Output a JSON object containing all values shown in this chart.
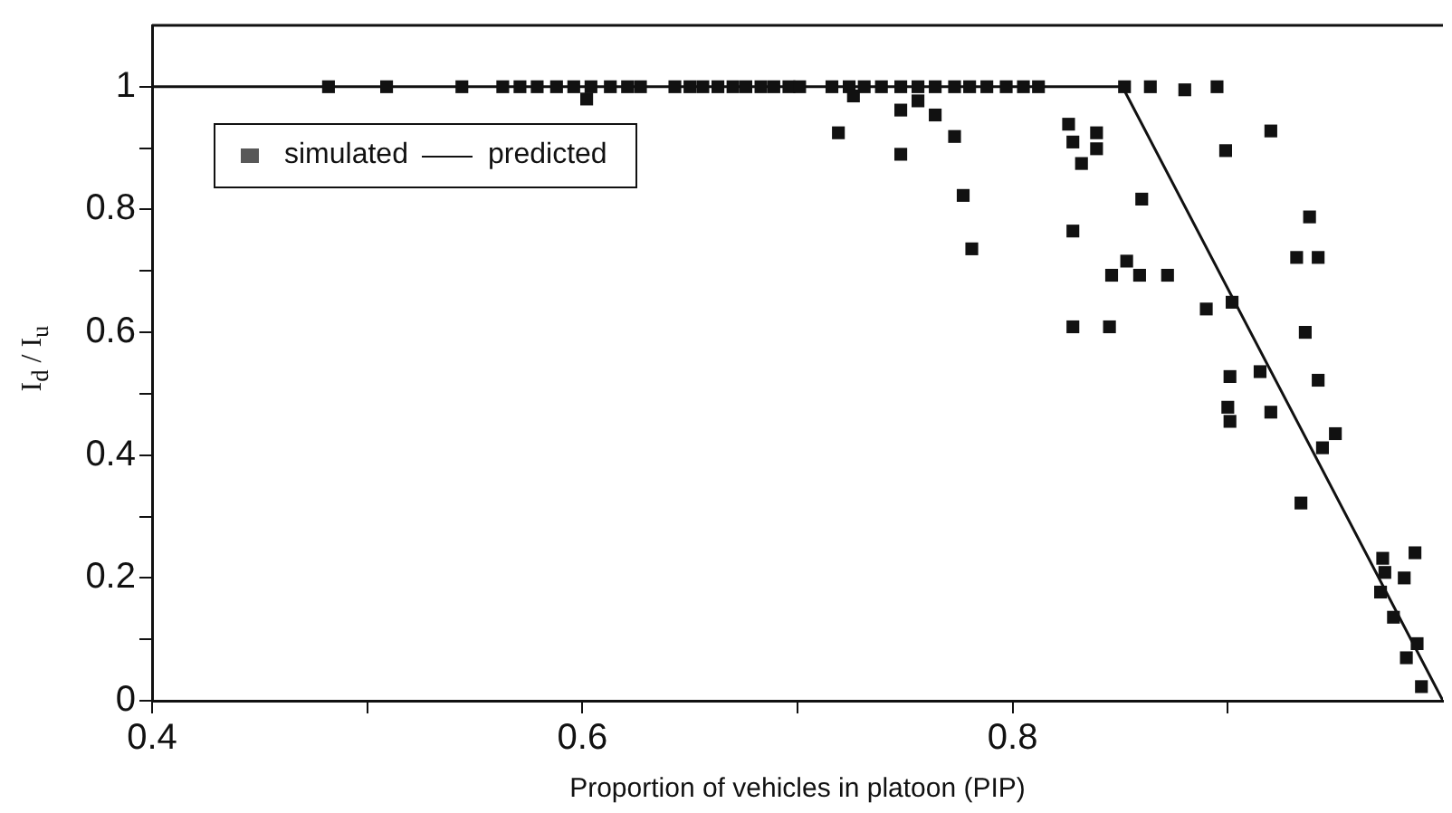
{
  "chart_data": {
    "type": "scatter",
    "xlabel": "Proportion of vehicles in platoon (PIP)",
    "ylabel": "I$_{d}$ / I$_{u}$",
    "xlim": [
      0.4,
      1.0
    ],
    "xticks": [
      0.4,
      {
        "value": 0.5,
        "label": null
      },
      0.6,
      {
        "value": 0.7,
        "label": null
      },
      0.8,
      {
        "value": 0.9,
        "label": null
      }
    ],
    "ylim": [
      0,
      1.1
    ],
    "yticks": [
      0,
      {
        "value": 0.1,
        "label": null
      },
      0.2,
      {
        "value": 0.3,
        "label": null
      },
      0.4,
      {
        "value": 0.5,
        "label": null
      },
      0.6,
      {
        "value": 0.7,
        "label": null
      },
      0.8,
      {
        "value": 0.9,
        "label": null
      },
      1
    ],
    "grid": false,
    "legend": "top left",
    "marker": "square",
    "series": [
      {
        "name": "simulated",
        "color": "#111111",
        "x": [
          0.482,
          0.509,
          0.544,
          0.563,
          0.571,
          0.579,
          0.588,
          0.596,
          0.604,
          0.613,
          0.621,
          0.627,
          0.602,
          0.643,
          0.65,
          0.656,
          0.663,
          0.67,
          0.676,
          0.683,
          0.689,
          0.696,
          0.701,
          0.716,
          0.724,
          0.731,
          0.739,
          0.748,
          0.756,
          0.764,
          0.773,
          0.78,
          0.788,
          0.797,
          0.805,
          0.812,
          0.852,
          0.864,
          0.88,
          0.895,
          0.726,
          0.719,
          0.748,
          0.748,
          0.756,
          0.764,
          0.773,
          0.777,
          0.781,
          0.826,
          0.828,
          0.839,
          0.839,
          0.832,
          0.86,
          0.828,
          0.853,
          0.846,
          0.859,
          0.872,
          0.828,
          0.845,
          0.89,
          0.902,
          0.899,
          0.92,
          0.938,
          0.932,
          0.942,
          0.936,
          0.901,
          0.915,
          0.942,
          0.9,
          0.92,
          0.901,
          0.95,
          0.944,
          0.934,
          0.972,
          0.987,
          0.973,
          0.982,
          0.971,
          0.977,
          0.988,
          0.983,
          0.99
        ],
        "values": [
          1,
          1,
          1,
          1,
          1,
          1,
          1,
          1,
          1,
          1,
          1,
          1,
          0.98,
          1,
          1,
          1,
          1,
          1,
          1,
          1,
          1,
          1,
          1,
          1,
          1,
          1,
          1,
          1,
          1,
          1,
          1,
          1,
          1,
          1,
          1,
          1,
          1,
          1,
          0.995,
          1,
          0.985,
          0.925,
          0.89,
          0.962,
          0.977,
          0.954,
          0.919,
          0.823,
          0.736,
          0.939,
          0.91,
          0.925,
          0.899,
          0.875,
          0.817,
          0.765,
          0.716,
          0.693,
          0.693,
          0.693,
          0.609,
          0.609,
          0.638,
          0.649,
          0.896,
          0.928,
          0.788,
          0.722,
          0.722,
          0.6,
          0.528,
          0.536,
          0.522,
          0.478,
          0.47,
          0.455,
          0.435,
          0.412,
          0.322,
          0.232,
          0.241,
          0.209,
          0.2,
          0.177,
          0.136,
          0.093,
          0.07,
          0.023
        ]
      },
      {
        "name": "predicted",
        "type": "line",
        "color": "#111111",
        "marker": "none",
        "line_style": "solid",
        "x": [
          0.4,
          0.851,
          1.0
        ],
        "values": [
          1,
          1,
          0
        ]
      }
    ]
  }
}
